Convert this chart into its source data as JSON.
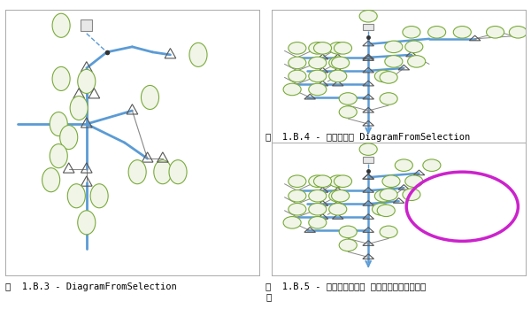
{
  "bg_color": "#ffffff",
  "border_color": "#aaaaaa",
  "blue_color": "#5b9bd5",
  "gray_color": "#888888",
  "dark_color": "#333333",
  "circle_fc": "#f0f5e8",
  "circle_ec": "#7aab3a",
  "triangle_ec": "#555555",
  "square_ec": "#888888",
  "ellipse_stroke": "#cc22cc",
  "caption1": "図  1.B.3 - DiagramFromSelection",
  "caption2": "図  1.B.4 - 展開された DiagramFromSelection",
  "caption3": "図  1.B.5 - スケマティック フィーチャが削除され\nた",
  "caption_fontsize": 7.5
}
